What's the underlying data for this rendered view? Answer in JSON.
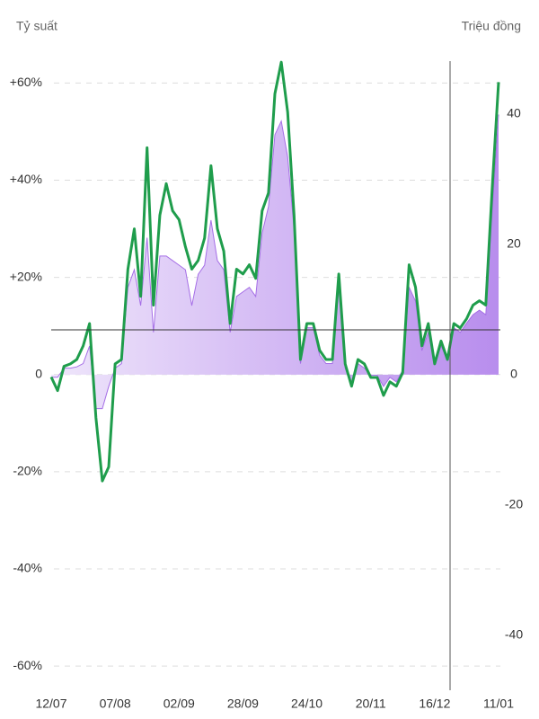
{
  "chart_data": {
    "type": "line",
    "y_label": "Tỷ suất",
    "y2_label": "Triệu đồng",
    "categories": [
      "12/07",
      null,
      null,
      null,
      null,
      null,
      null,
      null,
      null,
      null,
      "07/08",
      null,
      null,
      null,
      null,
      null,
      null,
      null,
      null,
      null,
      "02/09",
      null,
      null,
      null,
      null,
      null,
      null,
      null,
      null,
      null,
      "28/09",
      null,
      null,
      null,
      null,
      null,
      null,
      null,
      null,
      null,
      "24/10",
      null,
      null,
      null,
      null,
      null,
      null,
      null,
      null,
      null,
      "20/11",
      null,
      null,
      null,
      null,
      null,
      null,
      null,
      null,
      null,
      "16/12",
      null,
      null,
      null,
      null,
      null,
      null,
      null,
      null,
      null,
      "11/01"
    ],
    "series": [
      {
        "type": "area",
        "axis": "y2",
        "color": "#a56ee6",
        "values": [
          -0.4,
          -0.4,
          1,
          1,
          1.2,
          1.7,
          4.4,
          -5.2,
          -5.2,
          -1.8,
          1,
          1.7,
          13.4,
          16.1,
          10.6,
          21,
          6.5,
          18.2,
          18.2,
          17.5,
          16.8,
          16.1,
          10.6,
          15.4,
          16.8,
          23.7,
          17.5,
          16.1,
          6.5,
          12,
          12.7,
          13.4,
          12,
          21.7,
          25.8,
          36.8,
          38.9,
          33.4,
          22.3,
          1.7,
          7.2,
          7.2,
          3,
          1.7,
          1.7,
          13.4,
          1,
          -1.8,
          1.7,
          1,
          -0.1,
          -0.1,
          -1.8,
          -0.4,
          -1.1,
          0.7,
          13.4,
          11.3,
          3.7,
          6.5,
          1.7,
          4.4,
          2.3,
          7.2,
          6.5,
          7.9,
          9.2,
          9.9,
          9.2,
          25.1,
          39.9
        ]
      },
      {
        "type": "line",
        "color": "#1f9d4c",
        "values": [
          -0.5,
          -3.3,
          1.7,
          2.2,
          3.1,
          5.9,
          10.5,
          -8.9,
          -21.9,
          -19,
          2.2,
          3.1,
          21.7,
          30,
          16.1,
          46.7,
          14.3,
          32.8,
          39.3,
          33.7,
          31.9,
          26.3,
          21.7,
          23.5,
          28.1,
          43,
          30,
          25.4,
          10.5,
          21.7,
          20.7,
          22.6,
          19.8,
          33.7,
          37.4,
          57.8,
          64.3,
          54,
          32.8,
          3.1,
          10.5,
          10.5,
          5,
          3.1,
          3.1,
          20.7,
          2.2,
          -2.4,
          3.1,
          2.2,
          -0.6,
          -0.6,
          -4.3,
          -1.5,
          -2.4,
          0.4,
          22.6,
          18,
          5.9,
          10.5,
          2.2,
          6.9,
          3.1,
          10.5,
          9.6,
          11.5,
          14.3,
          15.2,
          14.3,
          38.3,
          60.2
        ]
      }
    ],
    "ylim": [
      -63.5,
      66
    ],
    "yticks": [
      {
        "value": 60,
        "label": "+60%"
      },
      {
        "value": 40,
        "label": "+40%"
      },
      {
        "value": 20,
        "label": "+20%"
      },
      0,
      {
        "value": -20,
        "label": "-20%"
      },
      {
        "value": -40,
        "label": "-40%"
      },
      {
        "value": -60,
        "label": "-60%"
      }
    ],
    "y2lim": [
      -47.3,
      49.2
    ],
    "y2ticks": [
      40,
      20,
      0,
      -20,
      -40
    ],
    "grid": true
  }
}
